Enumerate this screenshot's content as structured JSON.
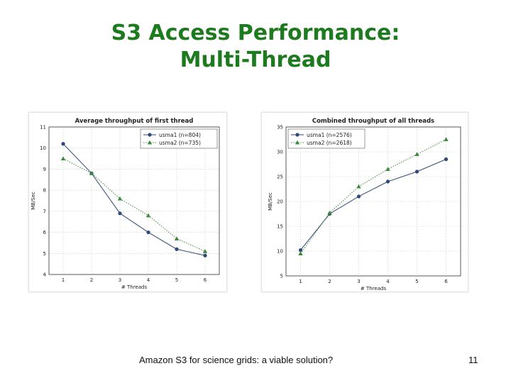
{
  "slide": {
    "title_line1": "S3 Access Performance:",
    "title_line2": "Multi-Thread",
    "title_color": "#1e7a1e",
    "footer": "Amazon S3 for science grids: a viable solution?",
    "page_number": "11"
  },
  "chart_data": [
    {
      "type": "line",
      "title": "Average throughput of first thread",
      "xlabel": "# Threads",
      "ylabel": "MB/Sec",
      "x": [
        1,
        2,
        3,
        4,
        5,
        6
      ],
      "xlim": [
        0.5,
        6.5
      ],
      "ylim": [
        4,
        11
      ],
      "xticks": [
        1,
        2,
        3,
        4,
        5,
        6
      ],
      "yticks": [
        4,
        5,
        6,
        7,
        8,
        9,
        10,
        11
      ],
      "grid": true,
      "legend_position": "top-right",
      "series": [
        {
          "name": "usma1 (n=804)",
          "values": [
            10.2,
            8.8,
            6.9,
            6.0,
            5.2,
            4.9
          ],
          "color": "#2f4a7a",
          "marker": "circle",
          "dash": "solid"
        },
        {
          "name": "usma2 (n=735)",
          "values": [
            9.5,
            8.8,
            7.6,
            6.8,
            5.7,
            5.1
          ],
          "color": "#3d8a3d",
          "marker": "triangle",
          "dash": "dotted"
        }
      ]
    },
    {
      "type": "line",
      "title": "Combined throughput of all threads",
      "xlabel": "# Threads",
      "ylabel": "MB/Sec",
      "x": [
        1,
        2,
        3,
        4,
        5,
        6
      ],
      "xlim": [
        0.5,
        6.5
      ],
      "ylim": [
        5,
        35
      ],
      "xticks": [
        1,
        2,
        3,
        4,
        5,
        6
      ],
      "yticks": [
        5,
        10,
        15,
        20,
        25,
        30,
        35
      ],
      "grid": true,
      "legend_position": "top-left",
      "series": [
        {
          "name": "usma1 (n=2576)",
          "values": [
            10.2,
            17.5,
            21.0,
            24.0,
            26.0,
            28.5
          ],
          "color": "#2f4a7a",
          "marker": "circle",
          "dash": "solid"
        },
        {
          "name": "usma2 (n=2618)",
          "values": [
            9.5,
            17.7,
            23.0,
            26.5,
            29.5,
            32.5
          ],
          "color": "#3d8a3d",
          "marker": "triangle",
          "dash": "dotted"
        }
      ]
    }
  ]
}
